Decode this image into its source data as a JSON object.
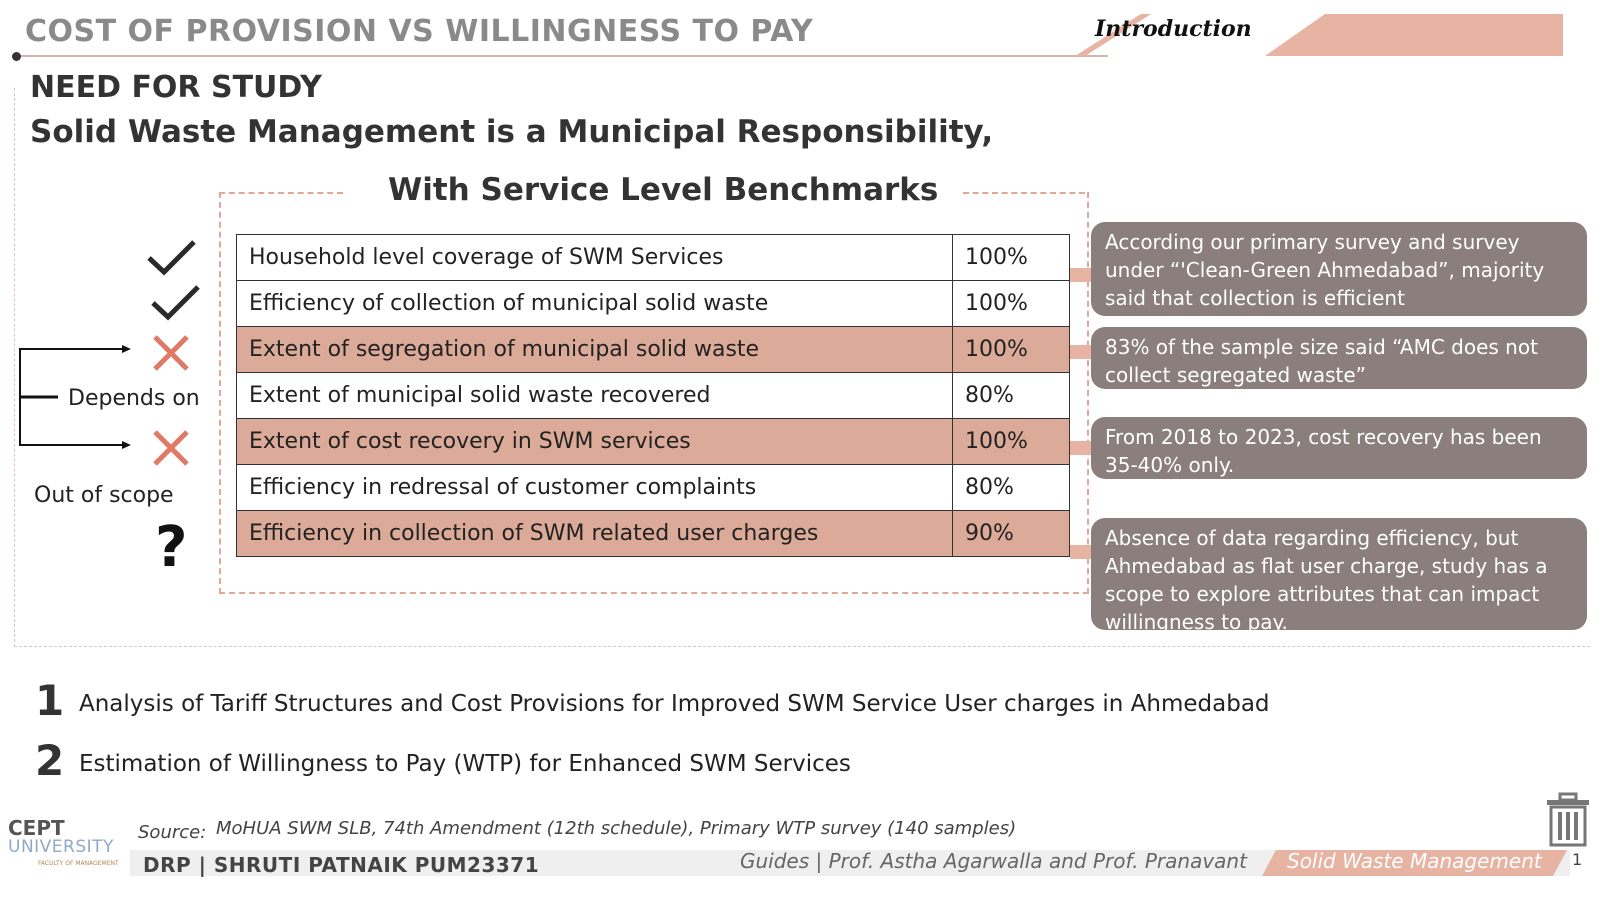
{
  "header": {
    "title": "COST OF PROVISION VS WILLINGNESS TO PAY",
    "tab": "Introduction"
  },
  "section": {
    "heading": "NEED FOR STUDY",
    "subheading": "Solid Waste  Management is a Municipal Responsibility,",
    "benchmark_title": "With Service Level Benchmarks"
  },
  "benchmarks": [
    {
      "indicator": "Household level coverage of SWM Services",
      "value": "100%"
    },
    {
      "indicator": "Efficiency of collection of municipal solid waste",
      "value": "100%"
    },
    {
      "indicator": "Extent of segregation of municipal solid waste",
      "value": "100%"
    },
    {
      "indicator": "Extent of municipal solid waste recovered",
      "value": "80%"
    },
    {
      "indicator": "Extent of cost recovery in SWM services",
      "value": "100%"
    },
    {
      "indicator": "Efficiency in redressal of customer complaints",
      "value": "80%"
    },
    {
      "indicator": "Efficiency in collection of SWM related user charges",
      "value": "90%"
    }
  ],
  "labels": {
    "depends_on": "Depends on",
    "out_of_scope": "Out of scope",
    "question": "?"
  },
  "notes": [
    "According our primary survey and survey under “'Clean-Green Ahmedabad”, majority said that collection is efficient",
    "83% of the sample size said “AMC does not collect segregated waste”",
    "From 2018 to 2023, cost recovery has been 35-40% only.",
    "Absence of data regarding efficiency, but Ahmedabad as flat user charge, study has a scope to explore attributes that can impact willingness to pay."
  ],
  "objectives": [
    {
      "num": "1",
      "text": "Analysis of Tariff Structures and Cost Provisions for Improved SWM Service User charges in Ahmedabad"
    },
    {
      "num": "2",
      "text": "Estimation of Willingness to Pay (WTP) for Enhanced SWM Services"
    }
  ],
  "footer": {
    "source_label": "Source:",
    "source_text": "MoHUA SWM SLB, 74th Amendment (12th schedule), Primary WTP survey (140 samples)",
    "author": "DRP | SHRUTI PATNAIK PUM23371",
    "guides": "Guides | Prof. Astha Agarwalla and Prof. Pranavant",
    "topic": "Solid Waste Management",
    "page": "1"
  },
  "logo": {
    "top": "CEPT",
    "bottom": "UNIVERSITY",
    "sub": "FACULTY OF MANAGEMENT"
  },
  "colors": {
    "accent": "#dcaa98",
    "note_bg": "#8a7f7c",
    "cross": "#e07a64"
  }
}
